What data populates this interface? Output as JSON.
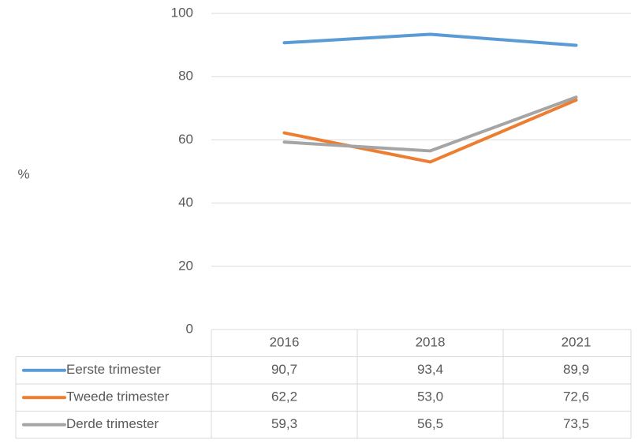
{
  "chart_data": {
    "type": "line",
    "ylabel": "%",
    "categories": [
      "2016",
      "2018",
      "2021"
    ],
    "series": [
      {
        "name": "Eerste trimester",
        "color": "#5b9bd5",
        "values": [
          90.7,
          93.4,
          89.9
        ],
        "value_labels": [
          "90,7",
          "93,4",
          "89,9"
        ]
      },
      {
        "name": "Tweede trimester",
        "color": "#ed7d31",
        "values": [
          62.2,
          53.0,
          72.6
        ],
        "value_labels": [
          "62,2",
          "53,0",
          "72,6"
        ]
      },
      {
        "name": "Derde trimester",
        "color": "#a5a5a5",
        "values": [
          59.3,
          56.5,
          73.5
        ],
        "value_labels": [
          "59,3",
          "56,5",
          "73,5"
        ]
      }
    ],
    "ylim": [
      0,
      100
    ],
    "yticks": [
      0,
      20,
      40,
      60,
      80,
      100
    ],
    "grid": true
  }
}
